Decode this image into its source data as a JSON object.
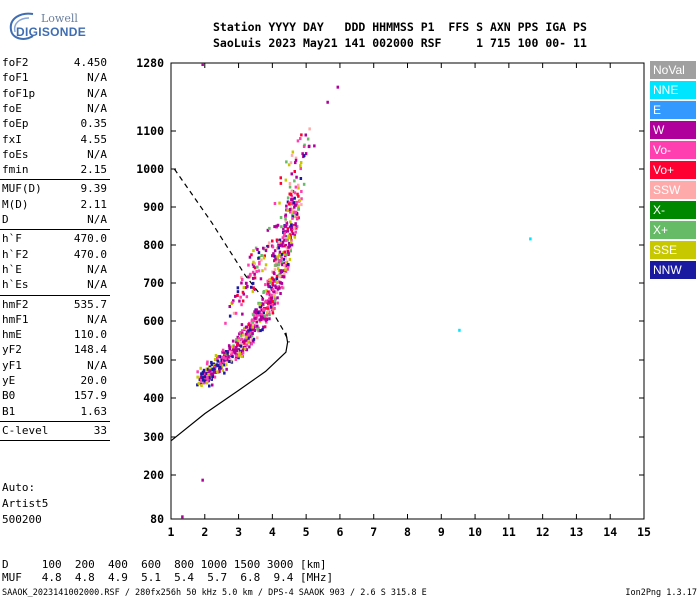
{
  "logo": {
    "line1": "Lowell",
    "line2": "DIGISONDE"
  },
  "header": {
    "line1": "Station YYYY DAY   DDD HHMMSS P1  FFS S AXN PPS IGA PS",
    "line2": "SaoLuis 2023 May21 141 002000 RSF     1 715 100 00- 11"
  },
  "params": [
    {
      "label": "foF2",
      "value": "4.450"
    },
    {
      "label": "foF1",
      "value": "N/A"
    },
    {
      "label": "foF1p",
      "value": "N/A"
    },
    {
      "label": "foE",
      "value": "N/A"
    },
    {
      "label": "foEp",
      "value": "0.35"
    },
    {
      "label": "fxI",
      "value": "4.55"
    },
    {
      "label": "foEs",
      "value": "N/A"
    },
    {
      "label": "fmin",
      "value": "2.15"
    },
    {
      "label": "MUF(D)",
      "value": "9.39"
    },
    {
      "label": "M(D)",
      "value": "2.11"
    },
    {
      "label": "D",
      "value": "N/A"
    },
    {
      "label": "h`F",
      "value": "470.0"
    },
    {
      "label": "h`F2",
      "value": "470.0"
    },
    {
      "label": "h`E",
      "value": "N/A"
    },
    {
      "label": "h`Es",
      "value": "N/A"
    },
    {
      "label": "hmF2",
      "value": "535.7"
    },
    {
      "label": "hmF1",
      "value": "N/A"
    },
    {
      "label": "hmE",
      "value": "110.0"
    },
    {
      "label": "yF2",
      "value": "148.4"
    },
    {
      "label": "yF1",
      "value": "N/A"
    },
    {
      "label": "yE",
      "value": "20.0"
    },
    {
      "label": "B0",
      "value": "157.9"
    },
    {
      "label": "B1",
      "value": "1.63"
    },
    {
      "label": "C-level",
      "value": "33"
    }
  ],
  "auto": {
    "line1": "Auto:",
    "line2": "Artist5",
    "line3": "500200"
  },
  "legend": [
    {
      "label": "NoVal",
      "color": "#a0a0a0"
    },
    {
      "label": "NNE",
      "color": "#00e5ff"
    },
    {
      "label": "E",
      "color": "#3399ff"
    },
    {
      "label": "W",
      "color": "#b0009c"
    },
    {
      "label": "Vo-",
      "color": "#ff3fb0"
    },
    {
      "label": "Vo+",
      "color": "#ff0033"
    },
    {
      "label": "SSW",
      "color": "#ffaaaa"
    },
    {
      "label": "X-",
      "color": "#008800"
    },
    {
      "label": "X+",
      "color": "#66bb66"
    },
    {
      "label": "SSE",
      "color": "#c8c800"
    },
    {
      "label": "NNW",
      "color": "#1a1aa0"
    }
  ],
  "chart_data": {
    "type": "scatter",
    "xlabel": "",
    "ylabel": "",
    "xlim": [
      1,
      15
    ],
    "ylim": [
      80,
      1280
    ],
    "x_ticks": [
      "1",
      "2",
      "3",
      "4",
      "5",
      "6",
      "7",
      "8",
      "9",
      "10",
      "11",
      "12",
      "13",
      "14",
      "15"
    ],
    "y_ticks": [
      "80",
      "200",
      "300",
      "400",
      "500",
      "600",
      "700",
      "800",
      "900",
      "1000",
      "1100",
      "1280"
    ],
    "y_tick_values": [
      80,
      200,
      300,
      400,
      500,
      600,
      700,
      800,
      900,
      1000,
      1100,
      1280
    ],
    "y_scale": "nonlinear (denser at top)",
    "profile_solid": [
      [
        1,
        290
      ],
      [
        2,
        360
      ],
      [
        3,
        420
      ],
      [
        3.8,
        470
      ],
      [
        4.4,
        520
      ],
      [
        4.45,
        545
      ],
      [
        4.4,
        570
      ]
    ],
    "profile_dashed": [
      [
        1.1,
        1000
      ],
      [
        2.2,
        860
      ],
      [
        3.2,
        720
      ],
      [
        3.9,
        640
      ],
      [
        4.3,
        580
      ],
      [
        4.5,
        545
      ]
    ],
    "echo_traces": [
      {
        "name": "F2 trace",
        "points": [
          [
            1.9,
            450
          ],
          [
            2.2,
            480
          ],
          [
            2.6,
            510
          ],
          [
            3.0,
            540
          ],
          [
            3.3,
            570
          ],
          [
            3.6,
            610
          ],
          [
            3.9,
            660
          ],
          [
            4.1,
            720
          ],
          [
            4.3,
            790
          ],
          [
            4.5,
            860
          ],
          [
            4.7,
            950
          ]
        ]
      },
      {
        "name": "spread",
        "points": [
          [
            2.8,
            620
          ],
          [
            3.2,
            700
          ],
          [
            3.6,
            760
          ],
          [
            4.0,
            840
          ],
          [
            4.6,
            1000
          ],
          [
            5.0,
            1090
          ]
        ]
      }
    ],
    "isolated_points": [
      [
        1.9,
        1280
      ],
      [
        5.9,
        1220
      ],
      [
        5.6,
        1180
      ],
      [
        9.5,
        580
      ],
      [
        11.6,
        820
      ],
      [
        1.9,
        190
      ],
      [
        1.3,
        90
      ]
    ]
  },
  "bottom": {
    "line1": "D     100  200  400  600  800 1000 1500 3000 [km]",
    "line2": "MUF   4.8  4.8  4.9  5.1  5.4  5.7  6.8  9.4 [MHz]"
  },
  "footer": {
    "left": "SAAOK_2023141002000.RSF / 280fx256h 50 kHz 5.0 km / DPS-4 SAAOK 903 / 2.6 S 315.8 E",
    "right": "Ion2Png 1.3.17"
  }
}
